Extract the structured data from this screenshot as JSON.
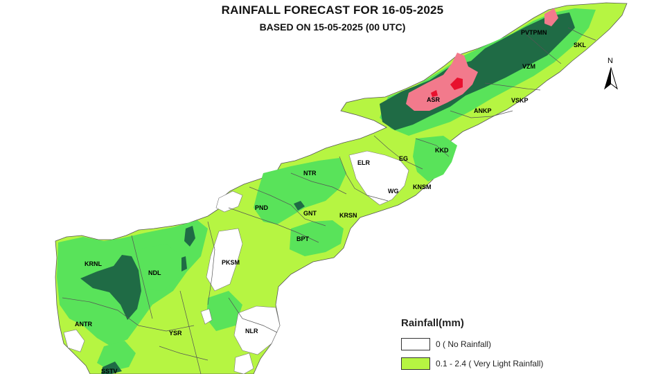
{
  "map": {
    "title": "RAINFALL FORECAST FOR 16-05-2025",
    "subtitle": "BASED ON 15-05-2025 (00 UTC)",
    "north_label": "N",
    "districts": [
      {
        "id": "pvtpmn",
        "label": "PVTPMN"
      },
      {
        "id": "skl",
        "label": "SKL"
      },
      {
        "id": "vzm",
        "label": "VZM"
      },
      {
        "id": "asr",
        "label": "ASR"
      },
      {
        "id": "vskp",
        "label": "VSKP"
      },
      {
        "id": "ankp",
        "label": "ANKP"
      },
      {
        "id": "kkd",
        "label": "KKD"
      },
      {
        "id": "eg",
        "label": "EG"
      },
      {
        "id": "elr",
        "label": "ELR"
      },
      {
        "id": "ntr",
        "label": "NTR"
      },
      {
        "id": "wg",
        "label": "WG"
      },
      {
        "id": "knsm",
        "label": "KNSM"
      },
      {
        "id": "pnd",
        "label": "PND"
      },
      {
        "id": "gnt",
        "label": "GNT"
      },
      {
        "id": "krsn",
        "label": "KRSN"
      },
      {
        "id": "bpt",
        "label": "BPT"
      },
      {
        "id": "krnl",
        "label": "KRNL"
      },
      {
        "id": "ndl",
        "label": "NDL"
      },
      {
        "id": "pksm",
        "label": "PKSM"
      },
      {
        "id": "antr",
        "label": "ANTR"
      },
      {
        "id": "ysr",
        "label": "YSR"
      },
      {
        "id": "nlr",
        "label": "NLR"
      },
      {
        "id": "sstv",
        "label": "SSTV"
      }
    ]
  },
  "legend": {
    "title": "Rainfall(mm)",
    "items": [
      {
        "label": "0 ( No Rainfall)",
        "color": "#ffffff"
      },
      {
        "label": "0.1 - 2.4 ( Very Light Rainfall)",
        "color": "#b6f542"
      }
    ]
  },
  "colors": {
    "no_rain": "#ffffff",
    "very_light": "#b6f542",
    "light": "#59e35a",
    "moderate": "#1fc43a",
    "heavy": "#1f6b45",
    "very_heavy": "#f27a8c",
    "extremely_heavy": "#e8102e"
  }
}
